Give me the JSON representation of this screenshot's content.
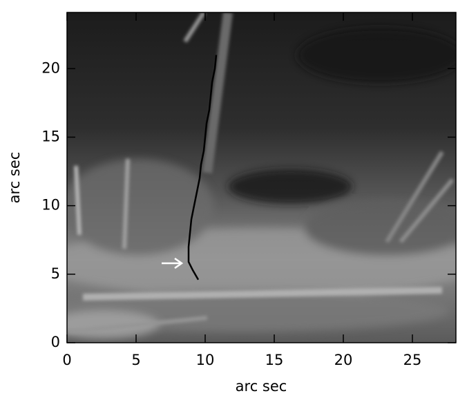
{
  "chart_data": {
    "type": "image",
    "xlabel": "arc sec",
    "ylabel": "arc sec",
    "xlim": [
      0,
      28.15
    ],
    "ylim": [
      0,
      24.1
    ],
    "xticks": [
      0,
      5,
      10,
      15,
      20,
      25
    ],
    "yticks": [
      0,
      5,
      10,
      15,
      20
    ],
    "series": [
      {
        "color": "#000000",
        "x": [
          9.5,
          9.1,
          8.8,
          8.8,
          8.9,
          9.0,
          9.2,
          9.4,
          9.6,
          9.7,
          9.9,
          10.0,
          10.1,
          10.3,
          10.4,
          10.5,
          10.7,
          10.8
        ],
        "values": [
          4.6,
          5.3,
          5.9,
          7,
          8,
          9,
          10,
          11,
          12,
          13,
          14,
          15,
          16,
          17,
          18,
          19,
          20,
          21
        ]
      }
    ]
  }
}
